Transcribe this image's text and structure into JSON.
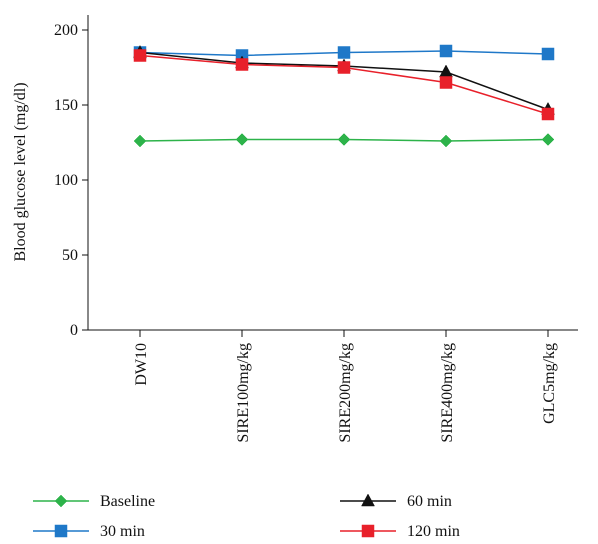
{
  "chart_data": {
    "type": "line",
    "title": "",
    "xlabel": "",
    "ylabel": "Blood glucose level (mg/dl)",
    "categories": [
      "DW10",
      "SIRE100mg/kg",
      "SIRE200mg/kg",
      "SIRE400mg/kg",
      "GLC5mg/kg"
    ],
    "ylim": [
      0,
      200
    ],
    "yticks": [
      0,
      50,
      100,
      150,
      200
    ],
    "grid": false,
    "legend_position": "bottom",
    "series": [
      {
        "name": "Baseline",
        "marker": "diamond",
        "color": "#2db34a",
        "values": [
          126,
          127,
          127,
          126,
          127
        ]
      },
      {
        "name": "30 min",
        "marker": "square",
        "color": "#1f78c8",
        "values": [
          185,
          183,
          185,
          186,
          184
        ]
      },
      {
        "name": "60 min",
        "marker": "triangle",
        "color": "#111111",
        "values": [
          185,
          178,
          176,
          172,
          147
        ]
      },
      {
        "name": "120 min",
        "marker": "square",
        "color": "#e8202a",
        "values": [
          183,
          177,
          175,
          165,
          144
        ]
      }
    ]
  }
}
